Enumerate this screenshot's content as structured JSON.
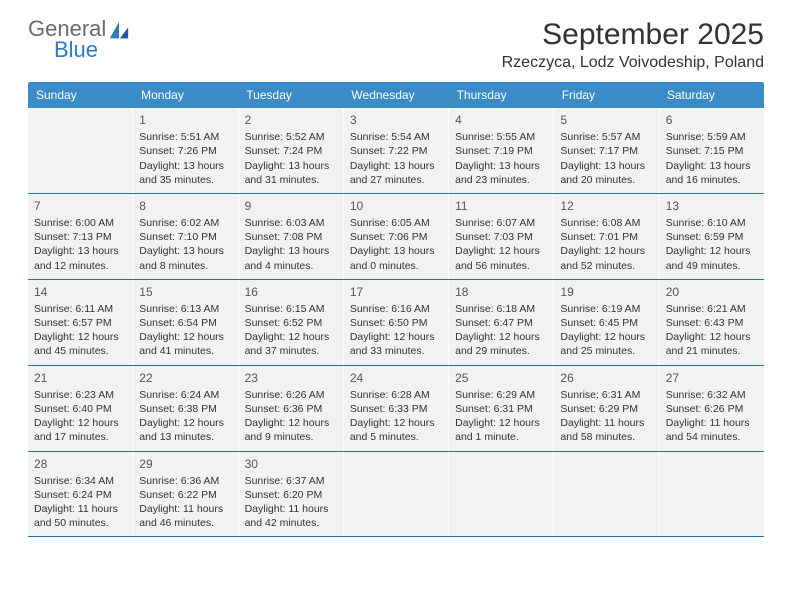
{
  "logo": {
    "word1": "General",
    "word2": "Blue"
  },
  "title": "September 2025",
  "location": "Rzeczyca, Lodz Voivodeship, Poland",
  "dayNames": [
    "Sunday",
    "Monday",
    "Tuesday",
    "Wednesday",
    "Thursday",
    "Friday",
    "Saturday"
  ],
  "colors": {
    "headerBar": "#3b8bc8",
    "cellBg": "#f1f2f2",
    "weekBorder": "#2a6ea3",
    "logoGray": "#6b6b6b",
    "logoBlue": "#2f7bbf",
    "text": "#333333"
  },
  "grid": {
    "startDayIndex": 1,
    "daysInMonth": 30
  },
  "days": {
    "1": {
      "sunrise": "5:51 AM",
      "sunset": "7:26 PM",
      "daylight": "13 hours and 35 minutes."
    },
    "2": {
      "sunrise": "5:52 AM",
      "sunset": "7:24 PM",
      "daylight": "13 hours and 31 minutes."
    },
    "3": {
      "sunrise": "5:54 AM",
      "sunset": "7:22 PM",
      "daylight": "13 hours and 27 minutes."
    },
    "4": {
      "sunrise": "5:55 AM",
      "sunset": "7:19 PM",
      "daylight": "13 hours and 23 minutes."
    },
    "5": {
      "sunrise": "5:57 AM",
      "sunset": "7:17 PM",
      "daylight": "13 hours and 20 minutes."
    },
    "6": {
      "sunrise": "5:59 AM",
      "sunset": "7:15 PM",
      "daylight": "13 hours and 16 minutes."
    },
    "7": {
      "sunrise": "6:00 AM",
      "sunset": "7:13 PM",
      "daylight": "13 hours and 12 minutes."
    },
    "8": {
      "sunrise": "6:02 AM",
      "sunset": "7:10 PM",
      "daylight": "13 hours and 8 minutes."
    },
    "9": {
      "sunrise": "6:03 AM",
      "sunset": "7:08 PM",
      "daylight": "13 hours and 4 minutes."
    },
    "10": {
      "sunrise": "6:05 AM",
      "sunset": "7:06 PM",
      "daylight": "13 hours and 0 minutes."
    },
    "11": {
      "sunrise": "6:07 AM",
      "sunset": "7:03 PM",
      "daylight": "12 hours and 56 minutes."
    },
    "12": {
      "sunrise": "6:08 AM",
      "sunset": "7:01 PM",
      "daylight": "12 hours and 52 minutes."
    },
    "13": {
      "sunrise": "6:10 AM",
      "sunset": "6:59 PM",
      "daylight": "12 hours and 49 minutes."
    },
    "14": {
      "sunrise": "6:11 AM",
      "sunset": "6:57 PM",
      "daylight": "12 hours and 45 minutes."
    },
    "15": {
      "sunrise": "6:13 AM",
      "sunset": "6:54 PM",
      "daylight": "12 hours and 41 minutes."
    },
    "16": {
      "sunrise": "6:15 AM",
      "sunset": "6:52 PM",
      "daylight": "12 hours and 37 minutes."
    },
    "17": {
      "sunrise": "6:16 AM",
      "sunset": "6:50 PM",
      "daylight": "12 hours and 33 minutes."
    },
    "18": {
      "sunrise": "6:18 AM",
      "sunset": "6:47 PM",
      "daylight": "12 hours and 29 minutes."
    },
    "19": {
      "sunrise": "6:19 AM",
      "sunset": "6:45 PM",
      "daylight": "12 hours and 25 minutes."
    },
    "20": {
      "sunrise": "6:21 AM",
      "sunset": "6:43 PM",
      "daylight": "12 hours and 21 minutes."
    },
    "21": {
      "sunrise": "6:23 AM",
      "sunset": "6:40 PM",
      "daylight": "12 hours and 17 minutes."
    },
    "22": {
      "sunrise": "6:24 AM",
      "sunset": "6:38 PM",
      "daylight": "12 hours and 13 minutes."
    },
    "23": {
      "sunrise": "6:26 AM",
      "sunset": "6:36 PM",
      "daylight": "12 hours and 9 minutes."
    },
    "24": {
      "sunrise": "6:28 AM",
      "sunset": "6:33 PM",
      "daylight": "12 hours and 5 minutes."
    },
    "25": {
      "sunrise": "6:29 AM",
      "sunset": "6:31 PM",
      "daylight": "12 hours and 1 minute."
    },
    "26": {
      "sunrise": "6:31 AM",
      "sunset": "6:29 PM",
      "daylight": "11 hours and 58 minutes."
    },
    "27": {
      "sunrise": "6:32 AM",
      "sunset": "6:26 PM",
      "daylight": "11 hours and 54 minutes."
    },
    "28": {
      "sunrise": "6:34 AM",
      "sunset": "6:24 PM",
      "daylight": "11 hours and 50 minutes."
    },
    "29": {
      "sunrise": "6:36 AM",
      "sunset": "6:22 PM",
      "daylight": "11 hours and 46 minutes."
    },
    "30": {
      "sunrise": "6:37 AM",
      "sunset": "6:20 PM",
      "daylight": "11 hours and 42 minutes."
    }
  },
  "labels": {
    "sunrise": "Sunrise:",
    "sunset": "Sunset:",
    "daylight": "Daylight:"
  }
}
